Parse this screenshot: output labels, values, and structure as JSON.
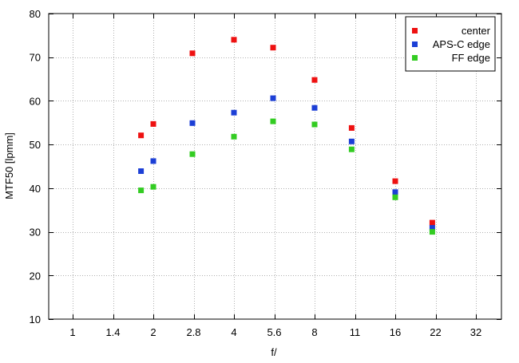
{
  "chart_data": {
    "type": "scatter",
    "x_categories": [
      "1",
      "1.4",
      "2",
      "2.8",
      "4",
      "5.6",
      "8",
      "11",
      "16",
      "22",
      "32"
    ],
    "ylim": [
      10,
      80
    ],
    "y_ticks": [
      10,
      20,
      30,
      40,
      50,
      60,
      70,
      80
    ],
    "xlabel": "f/",
    "ylabel": "MTF50 [lpmm]",
    "grid": true,
    "legend_position": "top-right",
    "series": [
      {
        "name": "center",
        "color": "#ee1111",
        "points": [
          {
            "x": 1.8,
            "y": 52.1
          },
          {
            "x": 2.0,
            "y": 54.7
          },
          {
            "x": 2.8,
            "y": 70.9
          },
          {
            "x": 4.0,
            "y": 74.0
          },
          {
            "x": 5.6,
            "y": 72.2
          },
          {
            "x": 8.0,
            "y": 64.8
          },
          {
            "x": 11.0,
            "y": 53.8
          },
          {
            "x": 16.0,
            "y": 41.6
          },
          {
            "x": 22.0,
            "y": 32.1
          }
        ]
      },
      {
        "name": "APS-C edge",
        "color": "#1c3fd6",
        "points": [
          {
            "x": 1.8,
            "y": 43.9
          },
          {
            "x": 2.0,
            "y": 46.2
          },
          {
            "x": 2.8,
            "y": 54.9
          },
          {
            "x": 4.0,
            "y": 57.3
          },
          {
            "x": 5.6,
            "y": 60.6
          },
          {
            "x": 8.0,
            "y": 58.4
          },
          {
            "x": 11.0,
            "y": 50.7
          },
          {
            "x": 16.0,
            "y": 39.1
          },
          {
            "x": 22.0,
            "y": 30.9
          }
        ]
      },
      {
        "name": "FF edge",
        "color": "#33cc22",
        "points": [
          {
            "x": 1.8,
            "y": 39.5
          },
          {
            "x": 2.0,
            "y": 40.3
          },
          {
            "x": 2.8,
            "y": 47.8
          },
          {
            "x": 4.0,
            "y": 51.8
          },
          {
            "x": 5.6,
            "y": 55.3
          },
          {
            "x": 8.0,
            "y": 54.6
          },
          {
            "x": 11.0,
            "y": 48.9
          },
          {
            "x": 16.0,
            "y": 37.9
          },
          {
            "x": 22.0,
            "y": 30.0
          }
        ]
      }
    ]
  }
}
